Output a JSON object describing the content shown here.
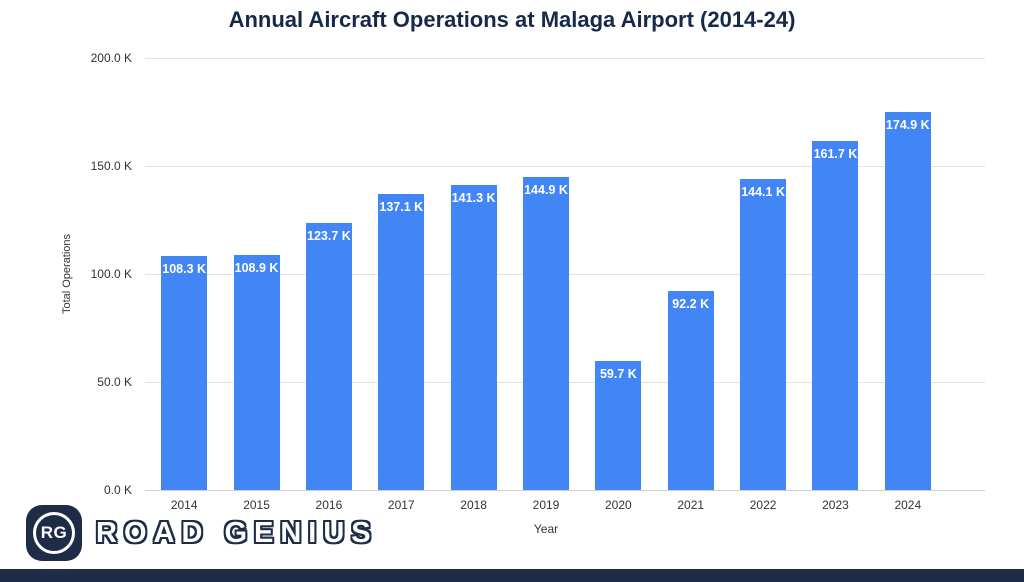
{
  "chart_data": {
    "type": "bar",
    "title": "Annual Aircraft Operations at Malaga Airport (2014-24)",
    "categories": [
      "2014",
      "2015",
      "2016",
      "2017",
      "2018",
      "2019",
      "2020",
      "2021",
      "2022",
      "2023",
      "2024"
    ],
    "values": [
      108.3,
      108.9,
      123.7,
      137.1,
      141.3,
      144.9,
      59.7,
      92.2,
      144.1,
      161.7,
      174.9
    ],
    "value_labels": [
      "108.3 K",
      "108.9 K",
      "123.7 K",
      "137.1 K",
      "141.3 K",
      "144.9 K",
      "59.7 K",
      "92.2 K",
      "144.1 K",
      "161.7 K",
      "174.9 K"
    ],
    "xlabel": "Year",
    "ylabel": "Total Operations",
    "ylim": [
      0,
      200
    ],
    "yticks": [
      0,
      50,
      100,
      150,
      200
    ],
    "ytick_labels": [
      "0.0 K",
      "50.0 K",
      "100.0 K",
      "150.0 K",
      "200.0 K"
    ],
    "bar_color": "#4286f5",
    "label_text_color": "#ffffff",
    "grid": true,
    "legend": "none"
  },
  "branding": {
    "logo_monogram": "RG",
    "logo_text": "ROAD GENIUS",
    "brand_color": "#1e2c47"
  }
}
